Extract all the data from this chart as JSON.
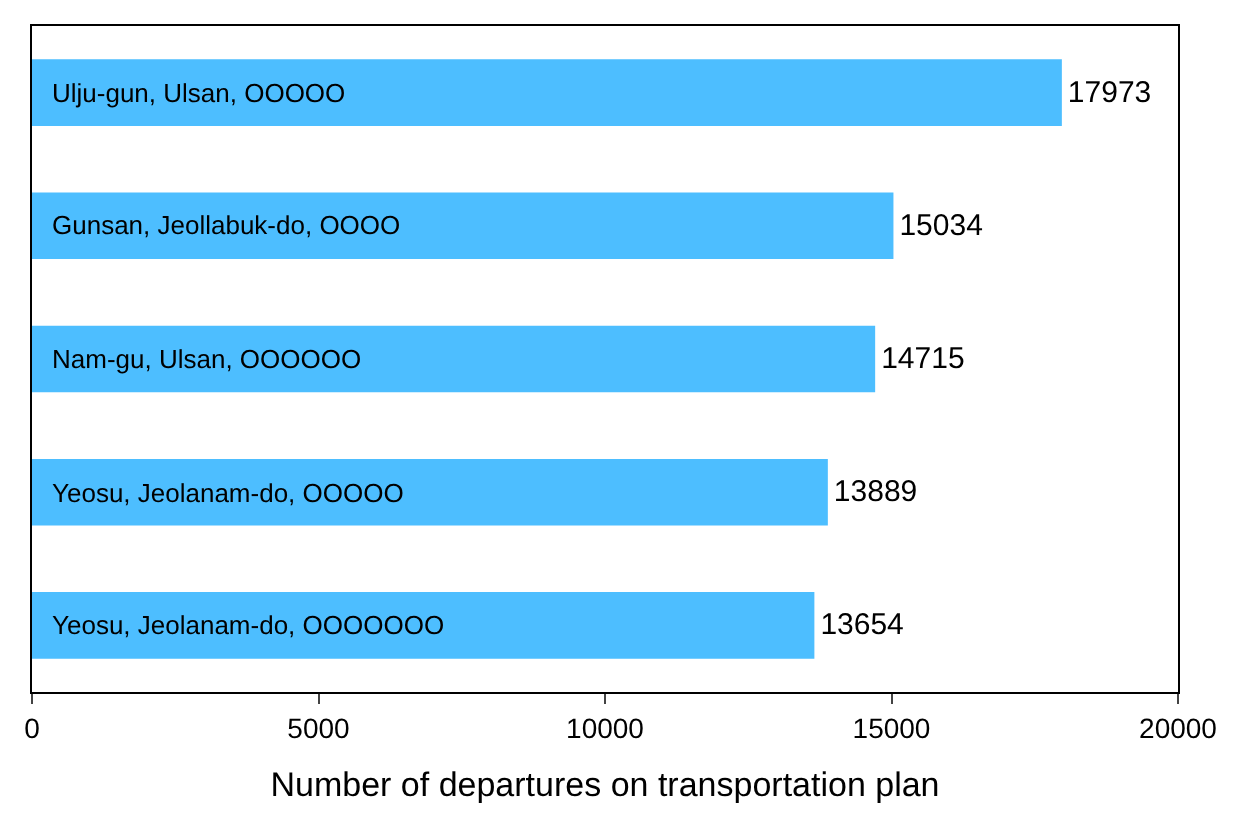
{
  "chart_data": {
    "type": "bar",
    "orientation": "horizontal",
    "xlabel": "Number of departures on transportation plan",
    "categories": [
      "Ulju-gun, Ulsan, OOOOO",
      "Gunsan, Jeollabuk-do, OOOO",
      "Nam-gu, Ulsan, OOOOOO",
      "Yeosu, Jeolanam-do, OOOOO",
      "Yeosu, Jeolanam-do, OOOOOOO"
    ],
    "values": [
      17973,
      15034,
      14715,
      13889,
      13654
    ],
    "color": "#4dbeff",
    "data_labels": true,
    "legend": false,
    "xlim": [
      0,
      20000
    ],
    "xticks": [
      0,
      5000,
      10000,
      15000,
      20000
    ]
  }
}
